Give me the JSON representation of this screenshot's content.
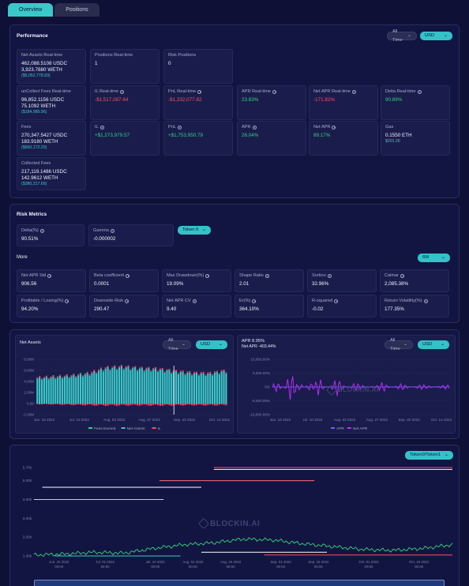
{
  "tabs": [
    "Overview",
    "Positions"
  ],
  "performance": {
    "title": "Performance",
    "range": "All Time",
    "currency": "USD",
    "cards": [
      {
        "label": "Net Assets Real-time",
        "values": [
          "462,088.5108 USDC",
          "3,923.7880 WETH"
        ],
        "sub": "($5,052,778.83)"
      },
      {
        "label": "Positions Real-time",
        "values": [
          "1"
        ]
      },
      {
        "label": "Risk Positions",
        "values": [
          "0"
        ]
      },
      {
        "label": "unCollect Fees Real-time",
        "values": [
          "96,852.1156 USDC",
          "75.1092 WETH"
        ],
        "sub": "($184,989.96)"
      },
      {
        "label": "IL Real-time",
        "values": [
          "-$1,517,087.64"
        ],
        "tone": "red",
        "info": true
      },
      {
        "label": "PnL Real-time",
        "values": [
          "-$1,332,077.82"
        ],
        "tone": "red",
        "info": true
      },
      {
        "label": "APR Real-time",
        "values": [
          "23.83%"
        ],
        "tone": "green",
        "info": true
      },
      {
        "label": "Net APR Real-time",
        "values": [
          "-171.82%"
        ],
        "tone": "red",
        "info": true
      },
      {
        "label": "Delta Real-time",
        "values": [
          "90.89%"
        ],
        "tone": "green",
        "info": true
      },
      {
        "label": "Fees",
        "values": [
          "270,347.5427 USDC",
          "183.9180 WETH"
        ],
        "sub": "($560,172.20)"
      },
      {
        "label": "IL",
        "values": [
          "+$1,273,979.57"
        ],
        "tone": "green",
        "info": true
      },
      {
        "label": "PnL",
        "values": [
          "+$1,753,950.79"
        ],
        "tone": "green",
        "info": true
      },
      {
        "label": "APR",
        "values": [
          "26.04%"
        ],
        "tone": "green",
        "info": true
      },
      {
        "label": "Net APR",
        "values": [
          "89.17%"
        ],
        "tone": "green",
        "info": true
      },
      {
        "label": "Gas",
        "values": [
          "0.1550 ETH"
        ],
        "sub": "$201.26"
      },
      {
        "label": "Collected Fees",
        "values": [
          "217,119.1486 USDC",
          "142.9612 WETH"
        ],
        "sub": "($380,217.66)"
      }
    ]
  },
  "risk": {
    "title": "Risk Metrics",
    "token_select": "Token 0",
    "more_label": "More",
    "period_select": "6M",
    "top_cards": [
      {
        "label": "Delta(%)",
        "value": "90.51%"
      },
      {
        "label": "Gamma",
        "value": "-0.000002"
      }
    ],
    "cards": [
      {
        "label": "Net APR Std",
        "value": "906.56"
      },
      {
        "label": "Beta coefficient",
        "value": "0.0001"
      },
      {
        "label": "Max Drawdown(%)",
        "value": "19.09%"
      },
      {
        "label": "Shape Ratio",
        "value": "2.01"
      },
      {
        "label": "Sortino",
        "value": "32.96%"
      },
      {
        "label": "Calmar",
        "value": "2,085.38%"
      },
      {
        "label": "Profitable / Losing(%)",
        "value": "94.20%"
      },
      {
        "label": "Downside Risk",
        "value": "290.47"
      },
      {
        "label": "Net APR CV",
        "value": "9.40"
      },
      {
        "label": "Er(%)",
        "value": "364.10%"
      },
      {
        "label": "R-squared",
        "value": "-0.02"
      },
      {
        "label": "Return Volatility(%)",
        "value": "177.35%"
      }
    ]
  },
  "charts_panel": {
    "left": {
      "title": "Net Assets",
      "range": "All Time",
      "currency": "USD"
    },
    "right": {
      "title_apr": "APR 8.95%",
      "title_net": "Net APR -403.44%",
      "range": "All Time",
      "currency": "USD"
    },
    "watermark": "BLOCKIN.AI"
  },
  "bottom_panel": {
    "pair_select": "Token0/Token1",
    "watermark": "BLOCKIN.AI"
  },
  "colors": {
    "teal": "#3ac8c8",
    "green": "#2fd47d",
    "red": "#ff4d5e",
    "magenta": "#c22cff",
    "purple": "#7a5cff"
  },
  "chart_data": [
    {
      "type": "bar",
      "title": "Net Assets",
      "x_ticks": [
        "Jun. 16 2022",
        "Jul. 10 2022",
        "Aug. 03 2022",
        "Aug. 27 2022",
        "Sep. 20 2022",
        "Oct. 14 2022"
      ],
      "y_ticks": [
        "8.00M",
        "6.00M",
        "4.00M",
        "2.00M",
        "0.00",
        "-2.00M"
      ],
      "ylim": [
        -2000000,
        8000000
      ],
      "legend": "bottom",
      "series": [
        {
          "name": "Fees Earned",
          "color": "#2fd47d",
          "values": [
            40000,
            50000,
            45000,
            60000,
            55000,
            50000,
            48000,
            52000,
            50000,
            46000,
            44000,
            45000
          ]
        },
        {
          "name": "Net Assets",
          "color": "#3ac8c8",
          "values": [
            4500000,
            4700000,
            4900000,
            5300000,
            6300000,
            6500000,
            6200000,
            6100000,
            5700000,
            5400000,
            5300000,
            5800000
          ]
        },
        {
          "name": "IL",
          "color": "#ff4d5e",
          "values": [
            -100000,
            -150000,
            -200000,
            -250000,
            -300000,
            -280000,
            -260000,
            -300000,
            -270000,
            -240000,
            -260000,
            -230000
          ]
        }
      ]
    },
    {
      "type": "line",
      "title": "APR 8.95%  Net APR -403.44%",
      "x_ticks": [
        "Jun. 16 2022",
        "Jul. 10 2022",
        "Aug. 03 2022",
        "Aug. 27 2022",
        "Sep. 20 2022",
        "Oct. 14 2022"
      ],
      "y_ticks": [
        "10,000.00%",
        "5,000.00%",
        "0%",
        "-5,000.00%",
        "-10,000.00%"
      ],
      "ylim": [
        -10000,
        10000
      ],
      "legend": "bottom",
      "series": [
        {
          "name": "APR",
          "color": "#7a5cff",
          "values": [
            0,
            50,
            30,
            80,
            40,
            60,
            20,
            30,
            10,
            20,
            15,
            10
          ]
        },
        {
          "name": "Net APR",
          "color": "#c22cff",
          "values": [
            0,
            7500,
            -6000,
            4500,
            -3000,
            2000,
            -1500,
            1800,
            -800,
            900,
            -600,
            500
          ]
        }
      ]
    },
    {
      "type": "line",
      "x_ticks": [
        "Jun. 22 2022",
        "Jul. 01 2022",
        "Jul. 10 2022",
        "Aug. 01 2022",
        "Aug. 15 2022",
        "Sep. 01 2022",
        "Sep. 15 2022",
        "Oct. 01 2022",
        "Oct. 15 2022"
      ],
      "x_sub": "00:00",
      "y_ticks": [
        "5.70k",
        "5.00k",
        "4.00k",
        "3.00k",
        "2.00k",
        "1.00k"
      ],
      "ylim": [
        1000,
        5700
      ],
      "series": [
        {
          "name": "price",
          "color": "#2fd47d",
          "values": [
            1050,
            1100,
            1200,
            1150,
            1400,
            1600,
            1700,
            1900,
            1850,
            1650,
            1500,
            1350,
            1300,
            1400,
            1600
          ]
        }
      ]
    }
  ]
}
